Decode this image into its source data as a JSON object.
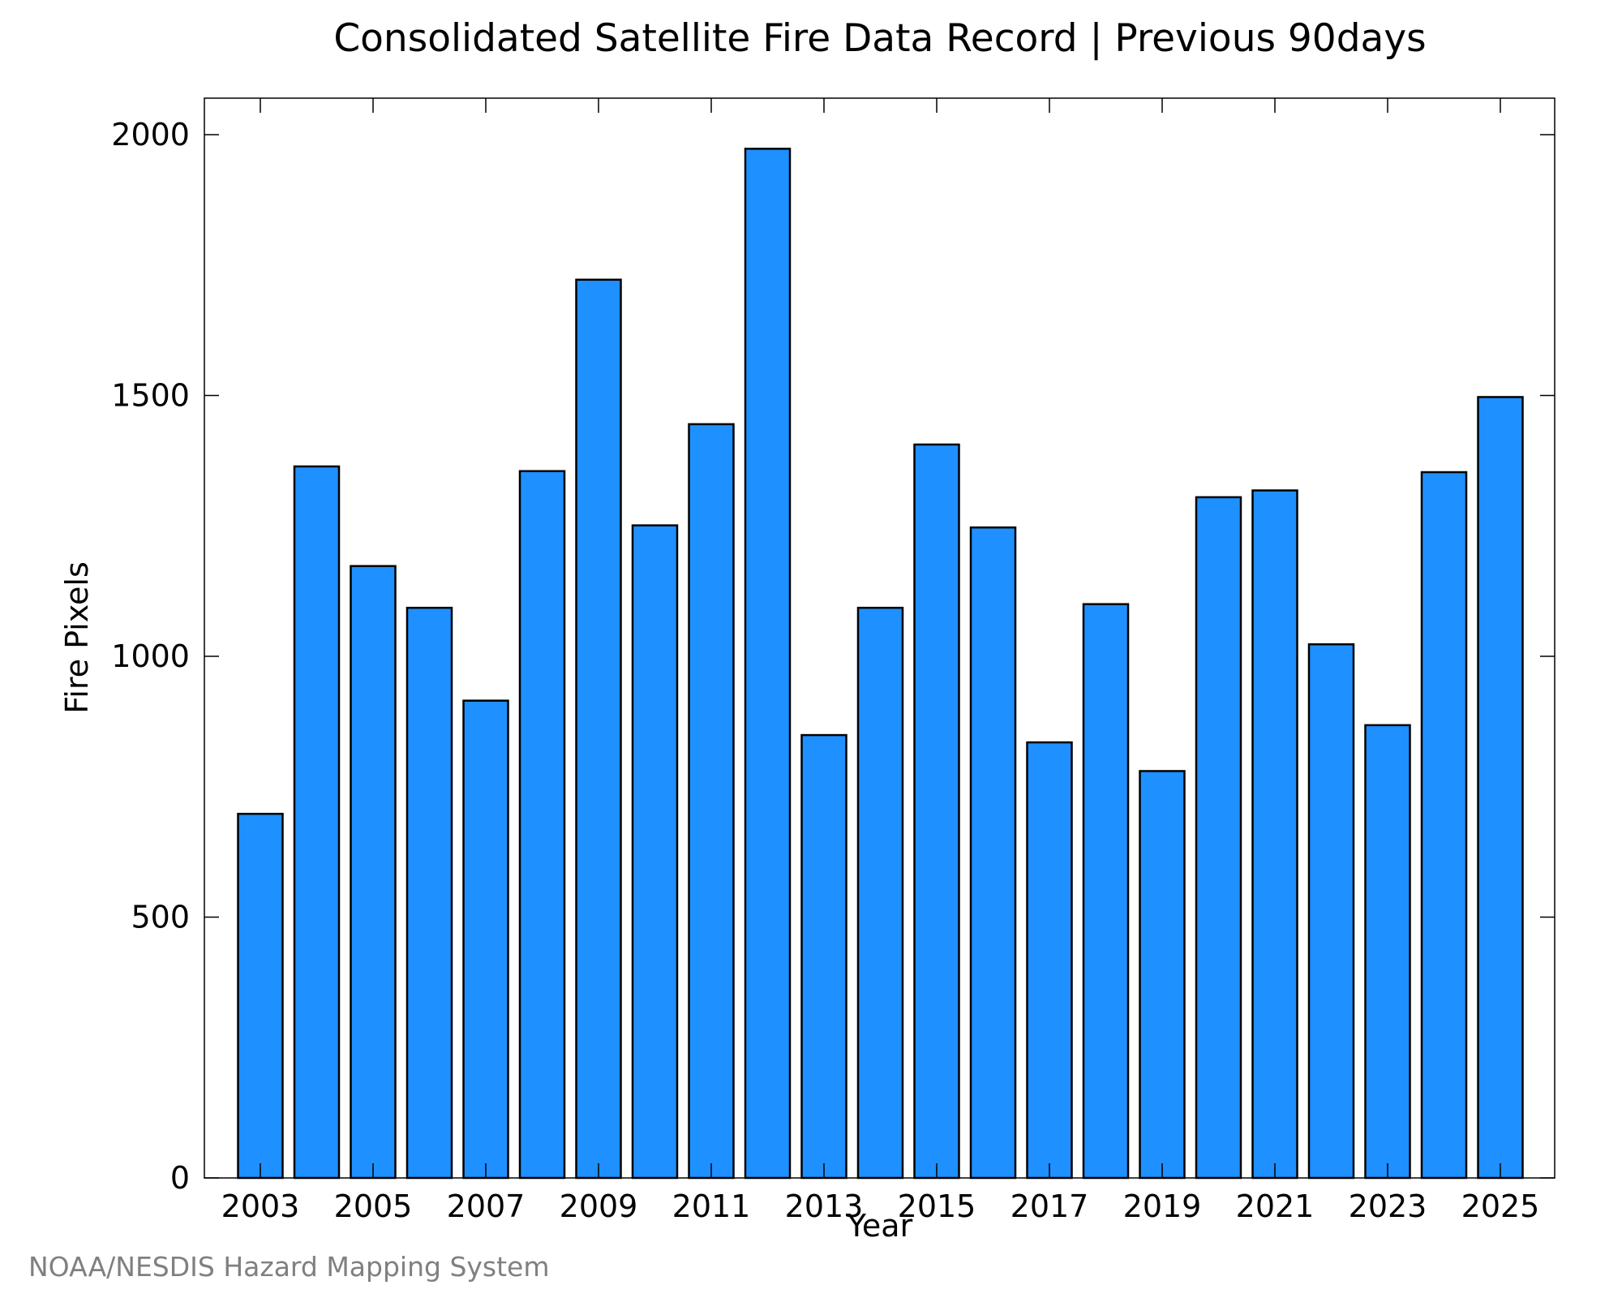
{
  "chart_data": {
    "type": "bar",
    "title": "Consolidated Satellite Fire Data Record | Previous 90days",
    "xlabel": "Year",
    "ylabel": "Fire Pixels",
    "categories": [
      "2003",
      "2004",
      "2005",
      "2006",
      "2007",
      "2008",
      "2009",
      "2010",
      "2011",
      "2012",
      "2013",
      "2014",
      "2015",
      "2016",
      "2017",
      "2018",
      "2019",
      "2020",
      "2021",
      "2022",
      "2023",
      "2024",
      "2025"
    ],
    "values": [
      698,
      1364,
      1173,
      1093,
      915,
      1355,
      1722,
      1251,
      1445,
      1973,
      849,
      1093,
      1406,
      1247,
      835,
      1100,
      780,
      1305,
      1318,
      1023,
      868,
      1353,
      1497
    ],
    "x_tick_labels": [
      "2003",
      "2005",
      "2007",
      "2009",
      "2011",
      "2013",
      "2015",
      "2017",
      "2019",
      "2021",
      "2023",
      "2025"
    ],
    "y_ticks": [
      "0",
      "500",
      "1000",
      "1500",
      "2000"
    ],
    "ylim": [
      0,
      2070
    ],
    "grid": false,
    "legend": "none",
    "bar_color": "#1e90ff",
    "bar_edge_color": "#000000"
  },
  "credit": "NOAA/NESDIS Hazard Mapping System"
}
